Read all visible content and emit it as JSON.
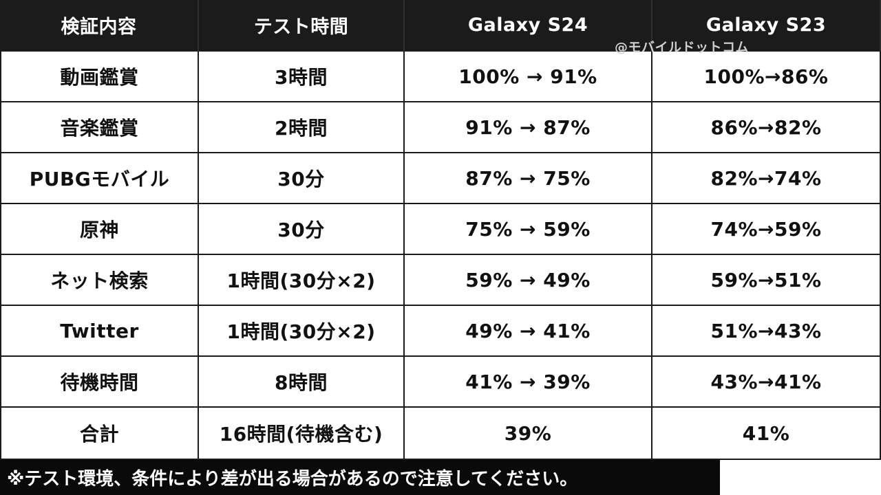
{
  "header": {
    "col1": "検証内容",
    "col2": "テスト時間",
    "col3": "Galaxy S24",
    "col4": "Galaxy S23"
  },
  "watermark": "@モバイルドットコム",
  "rows": [
    {
      "test": "動画鑑賞",
      "duration": "3時間",
      "s24": "100% → 91%",
      "s23": "100%→86%"
    },
    {
      "test": "音楽鑑賞",
      "duration": "2時間",
      "s24": "91% → 87%",
      "s23": "86%→82%"
    },
    {
      "test": "PUBGモバイル",
      "duration": "30分",
      "s24": "87% → 75%",
      "s23": "82%→74%"
    },
    {
      "test": "原神",
      "duration": "30分",
      "s24": "75% → 59%",
      "s23": "74%→59%"
    },
    {
      "test": "ネット検索",
      "duration": "1時間(30分×2)",
      "s24": "59% → 49%",
      "s23": "59%→51%"
    },
    {
      "test": "Twitter",
      "duration": "1時間(30分×2)",
      "s24": "49% → 41%",
      "s23": "51%→43%"
    },
    {
      "test": "待機時間",
      "duration": "8時間",
      "s24": "41% → 39%",
      "s23": "43%→41%"
    },
    {
      "test": "合計",
      "duration": "16時間(待機含む)",
      "s24": "39%",
      "s23": "41%"
    }
  ],
  "footer": "※テスト環境、条件により差が出る場合があるので注意してください。"
}
